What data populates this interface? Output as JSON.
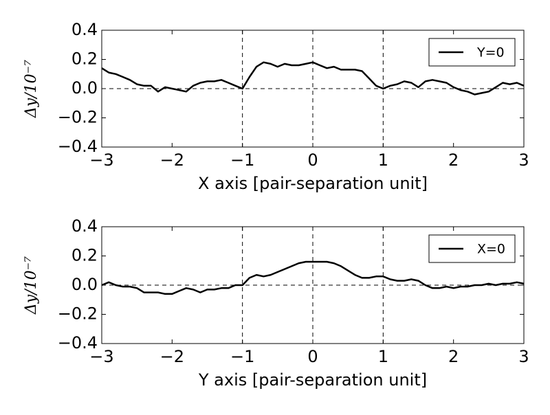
{
  "chart_data": [
    {
      "type": "line",
      "xlabel": "X axis [pair-separation unit]",
      "ylabel": "Δy/10⁻⁷",
      "x": [
        -3,
        -2.9,
        -2.8,
        -2.7,
        -2.6,
        -2.5,
        -2.4,
        -2.3,
        -2.2,
        -2.1,
        -2,
        -1.9,
        -1.8,
        -1.7,
        -1.6,
        -1.5,
        -1.4,
        -1.3,
        -1.2,
        -1.1,
        -1,
        -0.9,
        -0.8,
        -0.7,
        -0.6,
        -0.5,
        -0.4,
        -0.3,
        -0.2,
        -0.1,
        0,
        0.1,
        0.2,
        0.3,
        0.4,
        0.5,
        0.6,
        0.7,
        0.8,
        0.9,
        1,
        1.1,
        1.2,
        1.3,
        1.4,
        1.5,
        1.6,
        1.7,
        1.8,
        1.9,
        2,
        2.1,
        2.2,
        2.3,
        2.4,
        2.5,
        2.6,
        2.7,
        2.8,
        2.9,
        3
      ],
      "series": [
        {
          "name": "Y=0",
          "color": "#000000",
          "values": [
            0.14,
            0.11,
            0.1,
            0.08,
            0.06,
            0.03,
            0.02,
            0.02,
            -0.02,
            0.01,
            0,
            -0.01,
            -0.02,
            0.02,
            0.04,
            0.05,
            0.05,
            0.06,
            0.04,
            0.02,
            0,
            0.08,
            0.15,
            0.18,
            0.17,
            0.15,
            0.17,
            0.16,
            0.16,
            0.17,
            0.18,
            0.16,
            0.14,
            0.15,
            0.13,
            0.13,
            0.13,
            0.12,
            0.07,
            0.02,
            0,
            0.02,
            0.03,
            0.05,
            0.04,
            0.01,
            0.05,
            0.06,
            0.05,
            0.04,
            0.01,
            -0.01,
            -0.02,
            -0.04,
            -0.03,
            -0.02,
            0.01,
            0.04,
            0.03,
            0.04,
            0.02
          ]
        }
      ],
      "xlim": [
        -3,
        3
      ],
      "ylim": [
        -0.4,
        0.4
      ],
      "xticks": [
        {
          "value": -3,
          "label": "−3"
        },
        {
          "value": -2,
          "label": "−2"
        },
        {
          "value": -1,
          "label": "−1"
        },
        0,
        1,
        2,
        3
      ],
      "yticks": [
        {
          "value": -0.4,
          "label": "−0.4"
        },
        {
          "value": -0.2,
          "label": "−0.2"
        },
        {
          "value": 0,
          "label": "0.0"
        },
        0.2,
        0.4
      ],
      "vlines": [
        -1,
        0,
        1
      ],
      "hline": 0,
      "legend": "upper right"
    },
    {
      "type": "line",
      "xlabel": "Y axis [pair-separation unit]",
      "ylabel": "Δy/10⁻⁷",
      "x": [
        -3,
        -2.9,
        -2.8,
        -2.7,
        -2.6,
        -2.5,
        -2.4,
        -2.3,
        -2.2,
        -2.1,
        -2,
        -1.9,
        -1.8,
        -1.7,
        -1.6,
        -1.5,
        -1.4,
        -1.3,
        -1.2,
        -1.1,
        -1,
        -0.9,
        -0.8,
        -0.7,
        -0.6,
        -0.5,
        -0.4,
        -0.3,
        -0.2,
        -0.1,
        0,
        0.1,
        0.2,
        0.3,
        0.4,
        0.5,
        0.6,
        0.7,
        0.8,
        0.9,
        1,
        1.1,
        1.2,
        1.3,
        1.4,
        1.5,
        1.6,
        1.7,
        1.8,
        1.9,
        2,
        2.1,
        2.2,
        2.3,
        2.4,
        2.5,
        2.6,
        2.7,
        2.8,
        2.9,
        3
      ],
      "series": [
        {
          "name": "X=0",
          "color": "#000000",
          "values": [
            0,
            0.02,
            0,
            -0.01,
            -0.01,
            -0.02,
            -0.05,
            -0.05,
            -0.05,
            -0.06,
            -0.06,
            -0.04,
            -0.02,
            -0.03,
            -0.05,
            -0.03,
            -0.03,
            -0.02,
            -0.02,
            0,
            0,
            0.05,
            0.07,
            0.06,
            0.07,
            0.09,
            0.11,
            0.13,
            0.15,
            0.16,
            0.16,
            0.16,
            0.16,
            0.15,
            0.13,
            0.1,
            0.07,
            0.05,
            0.05,
            0.06,
            0.06,
            0.04,
            0.03,
            0.03,
            0.04,
            0.03,
            0,
            -0.02,
            -0.02,
            -0.01,
            -0.02,
            -0.01,
            -0.01,
            0,
            0,
            0.01,
            0,
            0.01,
            0.01,
            0.02,
            0.01
          ]
        }
      ],
      "xlim": [
        -3,
        3
      ],
      "ylim": [
        -0.4,
        0.4
      ],
      "xticks": [
        {
          "value": -3,
          "label": "−3"
        },
        {
          "value": -2,
          "label": "−2"
        },
        {
          "value": -1,
          "label": "−1"
        },
        0,
        1,
        2,
        3
      ],
      "yticks": [
        {
          "value": -0.4,
          "label": "−0.4"
        },
        {
          "value": -0.2,
          "label": "−0.2"
        },
        {
          "value": 0,
          "label": "0.0"
        },
        0.2,
        0.4
      ],
      "vlines": [
        -1,
        0,
        1
      ],
      "hline": 0,
      "legend": "upper right"
    }
  ]
}
